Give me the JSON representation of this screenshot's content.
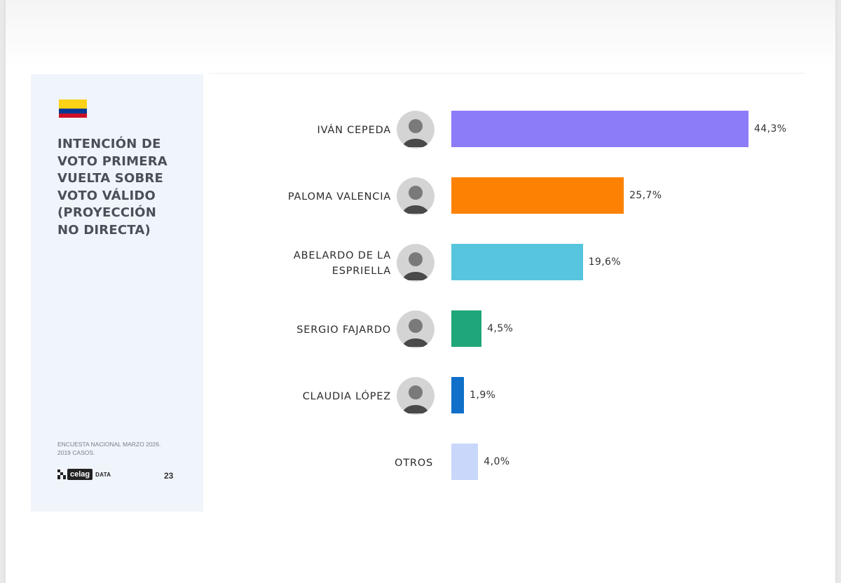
{
  "side": {
    "title": "INTENCIÓN DE\nVOTO PRIMERA\nVUELTA SOBRE\nVOTO VÁLIDO\n(PROYECCIÓN\nNO DIRECTA)",
    "source": "ENCUESTA NACIONAL MARZO 2026.\n2019 CASOS.",
    "logo_word": "celag",
    "logo_suffix": "DATA",
    "page_number": "23",
    "flag_colors": [
      "#fcd116",
      "#003893",
      "#ce1126"
    ]
  },
  "chart_data": {
    "type": "bar",
    "orientation": "horizontal",
    "categories": [
      "IVÁN CEPEDA",
      "PALOMA VALENCIA",
      "ABELARDO DE LA ESPRIELLA",
      "SERGIO FAJARDO",
      "CLAUDIA LÓPEZ",
      "OTROS"
    ],
    "category_display": [
      "IVÁN CEPEDA",
      "PALOMA VALENCIA",
      "ABELARDO DE LA\nESPRIELLA",
      "SERGIO FAJARDO",
      "CLAUDIA LÓPEZ",
      "OTROS"
    ],
    "values": [
      44.3,
      25.7,
      19.6,
      4.5,
      1.9,
      4.0
    ],
    "value_labels": [
      "44,3%",
      "25,7%",
      "19,6%",
      "4,5%",
      "1,9%",
      "4,0%"
    ],
    "colors": [
      "#8c7cf7",
      "#fd8204",
      "#57c5de",
      "#1fa67a",
      "#1070c9",
      "#c9d7fb"
    ],
    "has_avatar": [
      true,
      true,
      true,
      true,
      true,
      false
    ],
    "avatar_icons": [
      "candidate-photo-icon",
      "candidate-photo-icon",
      "candidate-photo-icon",
      "candidate-photo-icon",
      "candidate-photo-icon",
      ""
    ],
    "xlim": [
      0,
      44.3
    ],
    "grid": false,
    "legend": "none"
  }
}
